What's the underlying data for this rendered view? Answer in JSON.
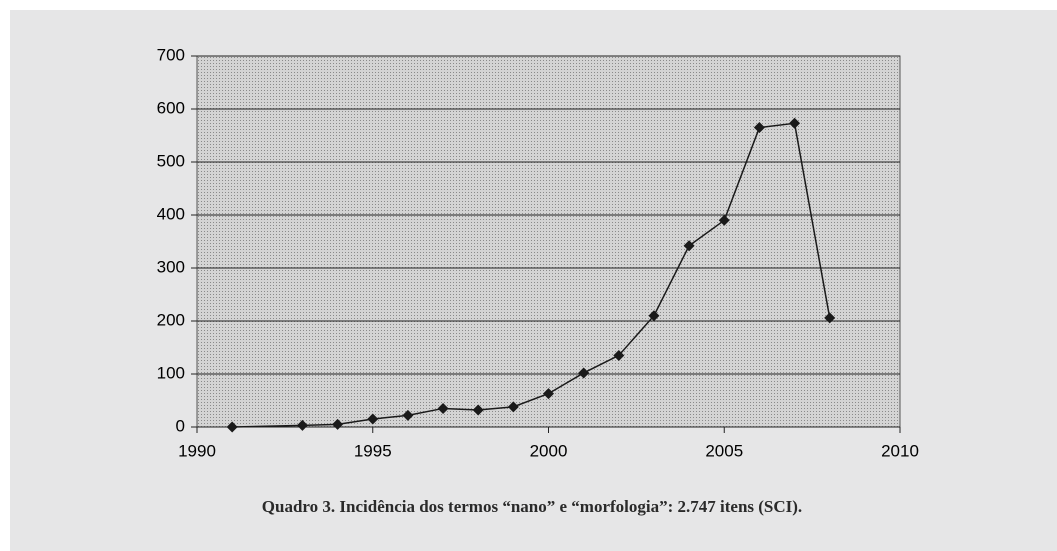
{
  "chart_data": {
    "type": "line",
    "caption": "Quadro 3. Incidência dos termos “nano” e “morfologia”: 2.747 itens (SCI).",
    "x": [
      1991,
      1993,
      1994,
      1995,
      1996,
      1997,
      1998,
      1999,
      2000,
      2001,
      2002,
      2003,
      2004,
      2005,
      2006,
      2007,
      2008
    ],
    "values": [
      0,
      3,
      5,
      15,
      22,
      35,
      32,
      38,
      63,
      102,
      135,
      210,
      342,
      390,
      565,
      573,
      206
    ],
    "color": "#1a1a1a",
    "xlim": [
      1990,
      2010
    ],
    "xticks": [
      1990,
      1995,
      2000,
      2005,
      2010
    ],
    "ylim": [
      0,
      700
    ],
    "yticks": [
      0,
      100,
      200,
      300,
      400,
      500,
      600,
      700
    ],
    "grid": true
  }
}
